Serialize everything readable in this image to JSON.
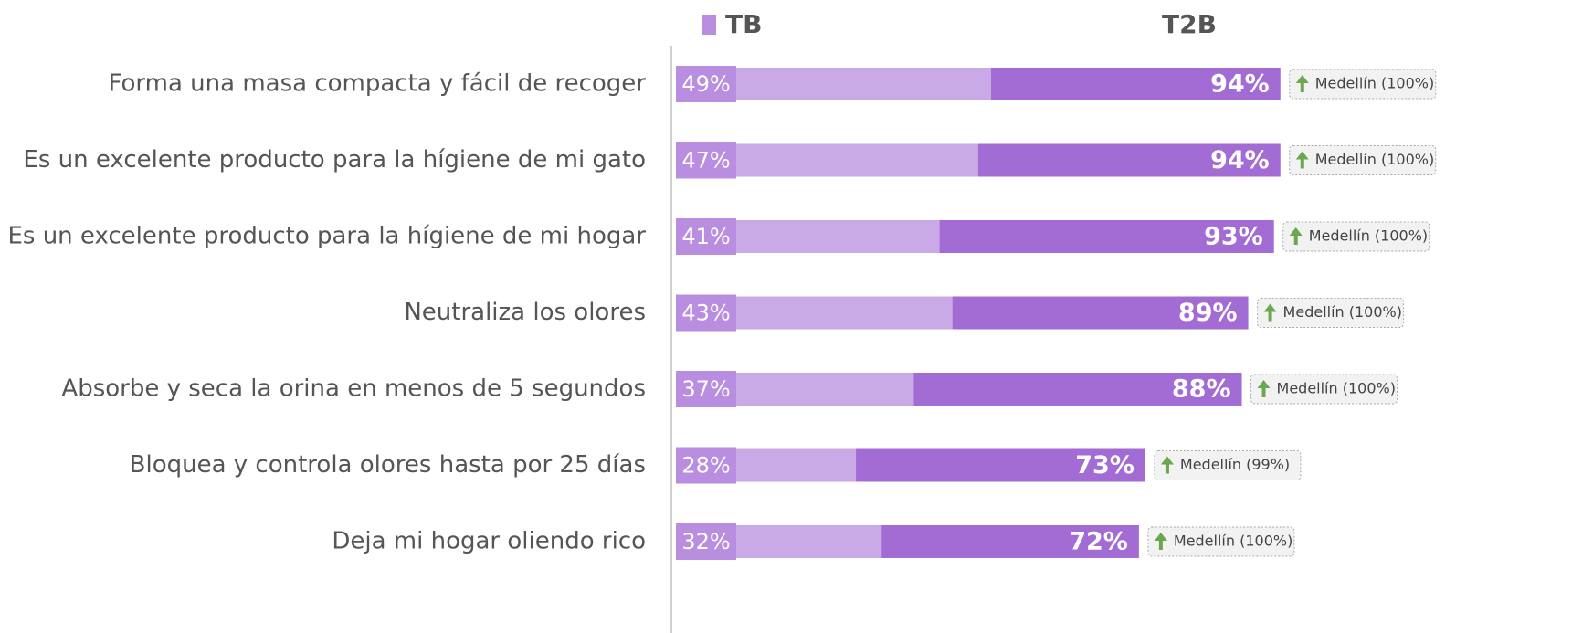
{
  "chart_data": {
    "type": "bar",
    "categories": [
      "Forma una masa compacta y fácil de recoger",
      "Es un excelente producto para la hígiene de mi gato",
      "Es un excelente producto para la hígiene de mi hogar",
      "Neutraliza los olores",
      "Absorbe y seca la orina en menos de 5 segundos",
      "Bloquea y controla olores hasta por 25 días",
      "Deja mi hogar oliendo rico"
    ],
    "series": [
      {
        "name": "TB",
        "color": "#c9a9e6",
        "values": [
          49,
          47,
          41,
          43,
          37,
          28,
          32
        ],
        "value_labels": [
          "49%",
          "47%",
          "41%",
          "43%",
          "37%",
          "28%",
          "32%"
        ]
      },
      {
        "name": "T2B",
        "color": "#a36bd4",
        "values": [
          94,
          94,
          93,
          89,
          88,
          73,
          72
        ],
        "value_labels": [
          "94%",
          "94%",
          "93%",
          "89%",
          "88%",
          "73%",
          "72%"
        ]
      }
    ],
    "annotations": [
      "Medellín (100%)",
      "Medellín (100%)",
      "Medellín (100%)",
      "Medellín (100%)",
      "Medellín (100%)",
      "Medellín (99%)",
      "Medellín (100%)"
    ],
    "xlim": [
      0,
      100
    ]
  }
}
